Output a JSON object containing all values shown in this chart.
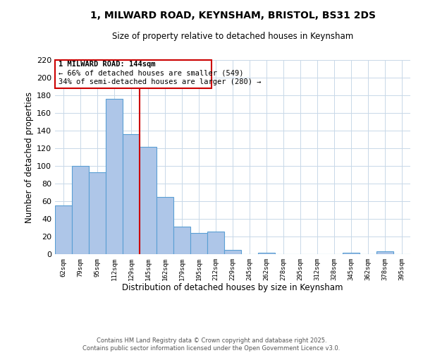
{
  "title1": "1, MILWARD ROAD, KEYNSHAM, BRISTOL, BS31 2DS",
  "title2": "Size of property relative to detached houses in Keynsham",
  "xlabel": "Distribution of detached houses by size in Keynsham",
  "ylabel": "Number of detached properties",
  "bin_labels": [
    "62sqm",
    "79sqm",
    "95sqm",
    "112sqm",
    "129sqm",
    "145sqm",
    "162sqm",
    "179sqm",
    "195sqm",
    "212sqm",
    "229sqm",
    "245sqm",
    "262sqm",
    "278sqm",
    "295sqm",
    "312sqm",
    "328sqm",
    "345sqm",
    "362sqm",
    "378sqm",
    "395sqm"
  ],
  "bar_heights": [
    55,
    100,
    93,
    176,
    136,
    122,
    65,
    31,
    24,
    26,
    5,
    0,
    2,
    0,
    0,
    0,
    0,
    2,
    0,
    3,
    0
  ],
  "bar_color": "#aec6e8",
  "bar_edge_color": "#5a9fd4",
  "vline_x": 5,
  "vline_color": "#cc0000",
  "annotation_box_title": "1 MILWARD ROAD: 144sqm",
  "annotation_line1": "← 66% of detached houses are smaller (549)",
  "annotation_line2": "34% of semi-detached houses are larger (280) →",
  "annotation_box_color": "#cc0000",
  "ylim": [
    0,
    220
  ],
  "yticks": [
    0,
    20,
    40,
    60,
    80,
    100,
    120,
    140,
    160,
    180,
    200,
    220
  ],
  "footer1": "Contains HM Land Registry data © Crown copyright and database right 2025.",
  "footer2": "Contains public sector information licensed under the Open Government Licence v3.0.",
  "grid_color": "#c8d8e8",
  "background_color": "#ffffff"
}
